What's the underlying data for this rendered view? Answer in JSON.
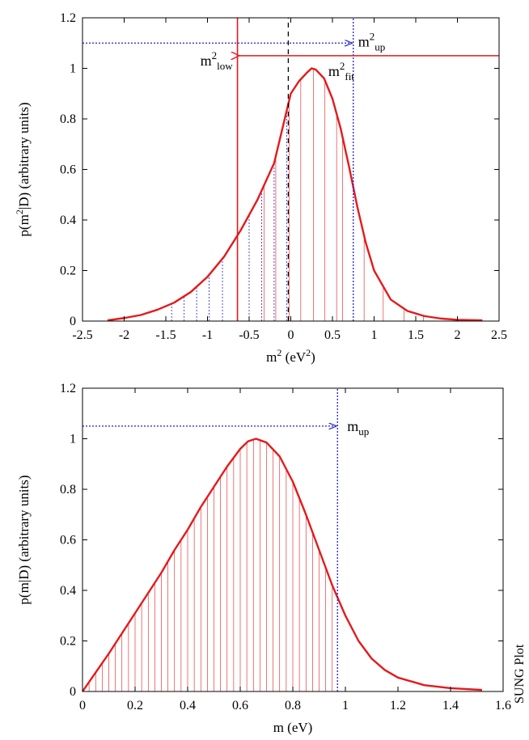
{
  "watermark": "SUNG Plot",
  "chart_data": [
    {
      "type": "line",
      "xlabel": {
        "base": "m",
        "sup": "2",
        "rest": " (eV",
        "sup2": "2",
        "end": ")"
      },
      "ylabel": {
        "pre": "p(m",
        "sup": "2",
        "post": "|D) (arbitrary units)"
      },
      "xlim": [
        -2.5,
        2.5
      ],
      "ylim": [
        0,
        1.2
      ],
      "xticks": [
        "-2.5",
        "-2",
        "-1.5",
        "-1",
        "-0.5",
        "0",
        "0.5",
        "1",
        "1.5",
        "2",
        "2.5"
      ],
      "yticks": [
        "0",
        "0.2",
        "0.4",
        "0.6",
        "0.8",
        "1",
        "1.2"
      ],
      "grid": false,
      "curve": {
        "color": "#e41a1c",
        "x": [
          -2.2,
          -2.0,
          -1.8,
          -1.6,
          -1.4,
          -1.2,
          -1.0,
          -0.8,
          -0.6,
          -0.4,
          -0.2,
          0.0,
          0.1,
          0.2,
          0.25,
          0.3,
          0.4,
          0.5,
          0.6,
          0.7,
          0.8,
          0.9,
          1.0,
          1.2,
          1.4,
          1.6,
          1.8,
          2.0,
          2.3
        ],
        "y": [
          0.003,
          0.012,
          0.024,
          0.045,
          0.073,
          0.115,
          0.175,
          0.255,
          0.36,
          0.48,
          0.625,
          0.9,
          0.95,
          0.985,
          1.0,
          0.995,
          0.96,
          0.88,
          0.76,
          0.61,
          0.45,
          0.31,
          0.2,
          0.085,
          0.04,
          0.02,
          0.01,
          0.005,
          0.003
        ]
      },
      "hatch_blue_x": [
        -1.43,
        -1.28,
        -1.13,
        -0.98,
        -0.82,
        -0.5,
        -0.35,
        -0.2,
        -0.05
      ],
      "hatch_red_x": [
        -0.32,
        -0.18,
        -0.02,
        0.12,
        0.27,
        0.41,
        0.55,
        0.62,
        0.88,
        1.11,
        1.36,
        1.59
      ],
      "lines": {
        "m2_low": -0.64,
        "m2_up": 0.75,
        "m2_fit": -0.03
      },
      "arrows": {
        "up_y": 1.1,
        "low_y": 1.05
      },
      "annotations": {
        "m2_up": {
          "base": "m",
          "sup": "2",
          "sub": "up"
        },
        "m2_low": {
          "base": "m",
          "sup": "2",
          "sub": "low"
        },
        "m2_fit": {
          "base": "m",
          "sup": "2",
          "sub": "fit"
        }
      }
    },
    {
      "type": "line",
      "xlabel": {
        "base": "m (eV)"
      },
      "ylabel": {
        "pre": "p(m|D) (arbitrary units)"
      },
      "xlim": [
        0,
        1.6
      ],
      "ylim": [
        0,
        1.2
      ],
      "xticks": [
        "0",
        "0.2",
        "0.4",
        "0.6",
        "0.8",
        "1",
        "1.2",
        "1.4",
        "1.6"
      ],
      "yticks": [
        "0",
        "0.2",
        "0.4",
        "0.6",
        "0.8",
        "1",
        "1.2"
      ],
      "grid": false,
      "curve": {
        "color": "#e41a1c",
        "x": [
          0.0,
          0.05,
          0.1,
          0.15,
          0.2,
          0.25,
          0.3,
          0.35,
          0.4,
          0.45,
          0.5,
          0.55,
          0.6,
          0.63,
          0.66,
          0.7,
          0.75,
          0.8,
          0.85,
          0.9,
          0.95,
          1.0,
          1.05,
          1.1,
          1.15,
          1.2,
          1.3,
          1.4,
          1.52
        ],
        "y": [
          0.0,
          0.075,
          0.15,
          0.23,
          0.31,
          0.39,
          0.47,
          0.56,
          0.64,
          0.73,
          0.81,
          0.89,
          0.96,
          0.99,
          1.0,
          0.985,
          0.93,
          0.83,
          0.7,
          0.56,
          0.42,
          0.3,
          0.2,
          0.13,
          0.085,
          0.055,
          0.025,
          0.013,
          0.006
        ]
      },
      "hatch_red_step": 0.025,
      "hatch_red_max": 0.96,
      "lines": {
        "m_up": 0.97
      },
      "arrows": {
        "up_y": 1.05
      },
      "annotations": {
        "m_up": {
          "base": "m",
          "sub": "up"
        }
      }
    }
  ]
}
